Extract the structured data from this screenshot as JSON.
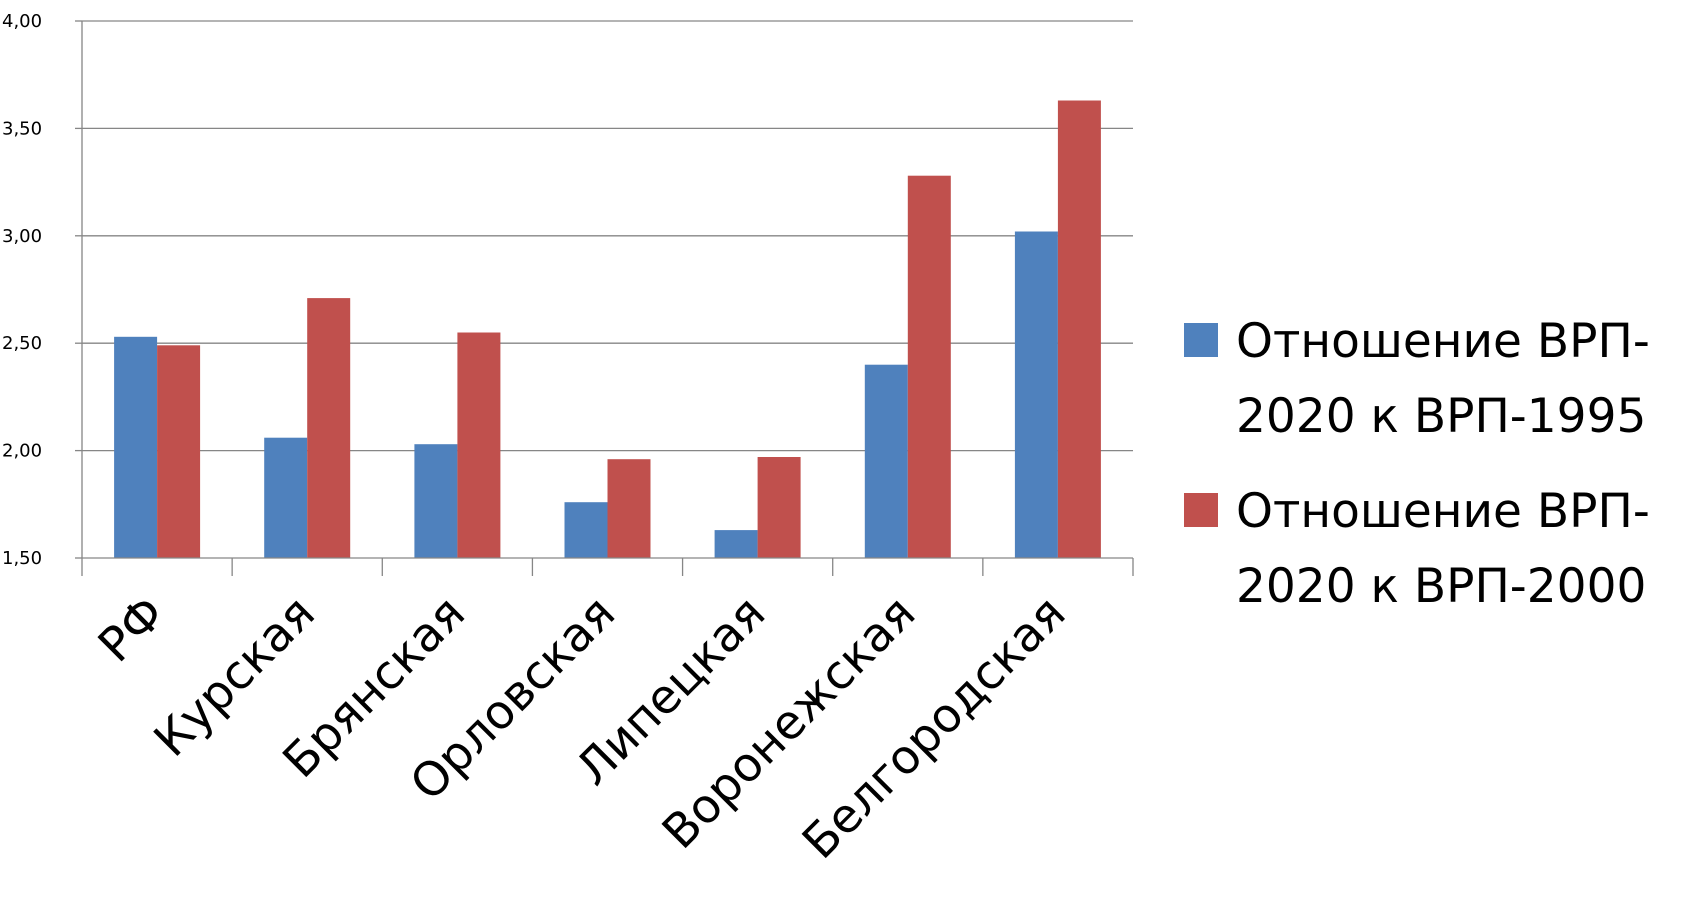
{
  "chart_data": {
    "type": "bar",
    "title": "",
    "xlabel": "",
    "ylabel": "",
    "ylim": [
      1.5,
      4.0
    ],
    "yticks": [
      "1,50",
      "2,00",
      "2,50",
      "3,00",
      "3,50",
      "4,00"
    ],
    "ytick_values": [
      1.5,
      2.0,
      2.5,
      3.0,
      3.5,
      4.0
    ],
    "grid": true,
    "legend_position": "right",
    "categories": [
      "РФ",
      "Курская",
      "Брянская",
      "Орловская",
      "Липецкая",
      "Воронежская",
      "Белгородская"
    ],
    "series": [
      {
        "name_lines": [
          "Отношение ВРП-",
          "2020 к ВРП-1995"
        ],
        "color": "#4F81BD",
        "values": [
          2.53,
          2.06,
          2.03,
          1.76,
          1.63,
          2.4,
          3.02
        ]
      },
      {
        "name_lines": [
          "Отношение ВРП-",
          "2020 к ВРП-2000"
        ],
        "color": "#C0504D",
        "values": [
          2.49,
          2.71,
          2.55,
          1.96,
          1.97,
          3.28,
          3.63
        ]
      }
    ]
  }
}
